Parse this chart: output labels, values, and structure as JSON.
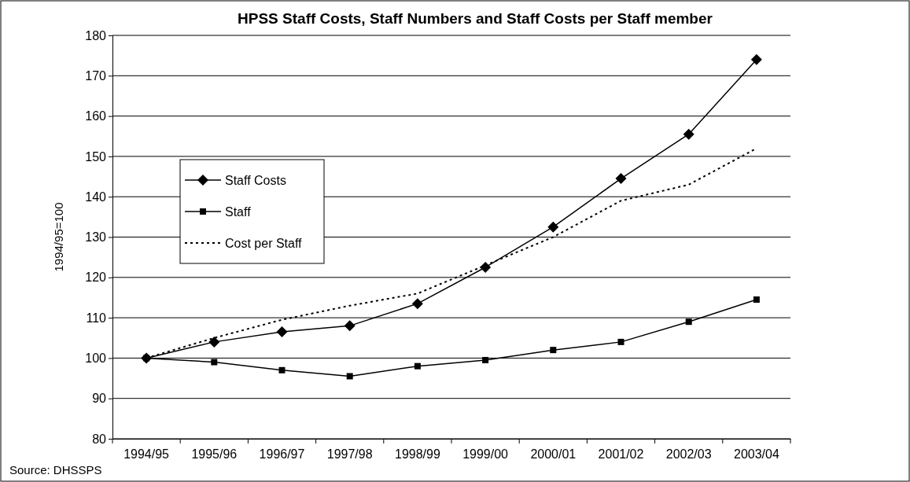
{
  "chart_data": {
    "type": "line",
    "title": "HPSS Staff Costs, Staff Numbers and Staff Costs per Staff member",
    "ylabel": "1994/95=100",
    "categories": [
      "1994/95",
      "1995/96",
      "1996/97",
      "1997/98",
      "1998/99",
      "1999/00",
      "2000/01",
      "2001/02",
      "2002/03",
      "2003/04"
    ],
    "series": [
      {
        "name": "Staff Costs",
        "color": "#000000",
        "marker": "diamond",
        "line_style": "solid",
        "values": [
          100,
          104,
          106.5,
          108,
          113.5,
          122.5,
          132.5,
          144.5,
          155.5,
          174
        ]
      },
      {
        "name": "Staff",
        "color": "#000000",
        "marker": "square",
        "line_style": "solid",
        "values": [
          100,
          99,
          97,
          95.5,
          98,
          99.5,
          102,
          104,
          109,
          114.5
        ]
      },
      {
        "name": "Cost per Staff",
        "color": "#000000",
        "marker": "none",
        "line_style": "dotted",
        "values": [
          100,
          105,
          109.5,
          113,
          116,
          123,
          130,
          139,
          143,
          152
        ]
      }
    ],
    "ylim": [
      80,
      180
    ],
    "yticks": [
      80,
      90,
      100,
      110,
      120,
      130,
      140,
      150,
      160,
      170,
      180
    ],
    "grid": "y",
    "legend": "left",
    "annotations": [
      "Source: DHSSPS"
    ]
  }
}
